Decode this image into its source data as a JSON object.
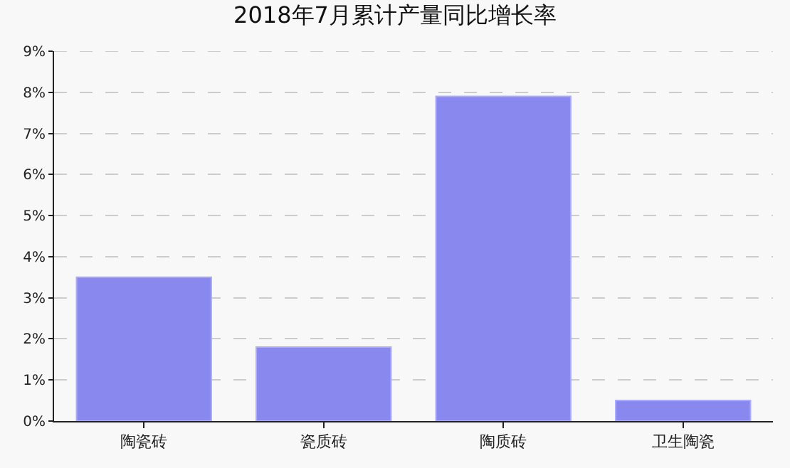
{
  "chart_data": {
    "type": "bar",
    "title": "2018年7月累计产量同比增长率",
    "categories": [
      "陶瓷砖",
      "瓷质砖",
      "陶质砖",
      "卫生陶瓷"
    ],
    "values": [
      3.5,
      1.8,
      7.9,
      0.5
    ],
    "color": "#8888ee",
    "ylim": [
      0,
      9
    ],
    "yticks": [
      {
        "value": 0,
        "label": "0%"
      },
      {
        "value": 1,
        "label": "1%"
      },
      {
        "value": 2,
        "label": "2%"
      },
      {
        "value": 3,
        "label": "3%"
      },
      {
        "value": 4,
        "label": "4%"
      },
      {
        "value": 5,
        "label": "5%"
      },
      {
        "value": 6,
        "label": "6%"
      },
      {
        "value": 7,
        "label": "7%"
      },
      {
        "value": 8,
        "label": "8%"
      },
      {
        "value": 9,
        "label": "9%"
      }
    ],
    "grid": "y"
  }
}
